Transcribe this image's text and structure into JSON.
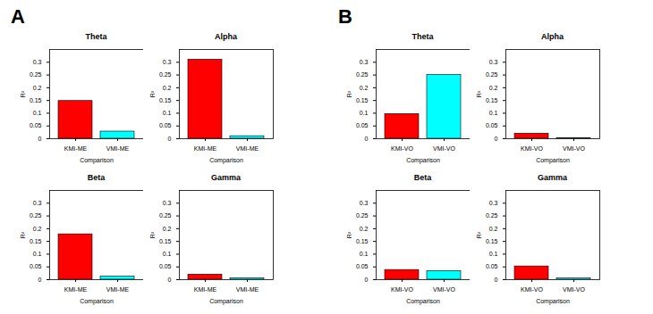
{
  "panel_labels": [
    "A",
    "B"
  ],
  "chart_data": [
    {
      "type": "bar",
      "title": "Theta",
      "categories": [
        "KMI-ME",
        "VMI-ME"
      ],
      "values": [
        0.148,
        0.028
      ],
      "colors": [
        "#ff0000",
        "#00ffff"
      ],
      "xlabel": "Comparison",
      "ylabel": "R²",
      "ylim": [
        0,
        0.35
      ],
      "yticks": [
        0,
        0.05,
        0.1,
        0.15,
        0.2,
        0.25,
        0.3
      ]
    },
    {
      "type": "bar",
      "title": "Alpha",
      "categories": [
        "KMI-ME",
        "VMI-ME"
      ],
      "values": [
        0.31,
        0.01
      ],
      "colors": [
        "#ff0000",
        "#00ffff"
      ],
      "xlabel": "Comparison",
      "ylabel": "R²",
      "ylim": [
        0,
        0.35
      ],
      "yticks": [
        0,
        0.05,
        0.1,
        0.15,
        0.2,
        0.25,
        0.3
      ]
    },
    {
      "type": "bar",
      "title": "Beta",
      "categories": [
        "KMI-ME",
        "VMI-ME"
      ],
      "values": [
        0.178,
        0.012
      ],
      "colors": [
        "#ff0000",
        "#00ffff"
      ],
      "xlabel": "Comparison",
      "ylabel": "R²",
      "ylim": [
        0,
        0.35
      ],
      "yticks": [
        0,
        0.05,
        0.1,
        0.15,
        0.2,
        0.25,
        0.3
      ]
    },
    {
      "type": "bar",
      "title": "Gamma",
      "categories": [
        "KMI-ME",
        "VMI-ME"
      ],
      "values": [
        0.02,
        0.006
      ],
      "colors": [
        "#ff0000",
        "#00ffff"
      ],
      "xlabel": "Comparison",
      "ylabel": "R²",
      "ylim": [
        0,
        0.35
      ],
      "yticks": [
        0,
        0.05,
        0.1,
        0.15,
        0.2,
        0.25,
        0.3
      ]
    },
    {
      "type": "bar",
      "title": "Theta",
      "categories": [
        "KMI-VO",
        "VMI-VO"
      ],
      "values": [
        0.097,
        0.25
      ],
      "colors": [
        "#ff0000",
        "#00ffff"
      ],
      "xlabel": "Comparison",
      "ylabel": "R²",
      "ylim": [
        0,
        0.35
      ],
      "yticks": [
        0,
        0.05,
        0.1,
        0.15,
        0.2,
        0.25,
        0.3
      ]
    },
    {
      "type": "bar",
      "title": "Alpha",
      "categories": [
        "KMI-VO",
        "VMI-VO"
      ],
      "values": [
        0.02,
        0.002
      ],
      "colors": [
        "#ff0000",
        "#00ffff"
      ],
      "xlabel": "Comparison",
      "ylabel": "R²",
      "ylim": [
        0,
        0.35
      ],
      "yticks": [
        0,
        0.05,
        0.1,
        0.15,
        0.2,
        0.25,
        0.3
      ]
    },
    {
      "type": "bar",
      "title": "Beta",
      "categories": [
        "KMI-VO",
        "VMI-VO"
      ],
      "values": [
        0.038,
        0.034
      ],
      "colors": [
        "#ff0000",
        "#00ffff"
      ],
      "xlabel": "Comparison",
      "ylabel": "R²",
      "ylim": [
        0,
        0.35
      ],
      "yticks": [
        0,
        0.05,
        0.1,
        0.15,
        0.2,
        0.25,
        0.3
      ]
    },
    {
      "type": "bar",
      "title": "Gamma",
      "categories": [
        "KMI-VO",
        "VMI-VO"
      ],
      "values": [
        0.052,
        0.005
      ],
      "colors": [
        "#ff0000",
        "#00ffff"
      ],
      "xlabel": "Comparison",
      "ylabel": "R²",
      "ylim": [
        0,
        0.35
      ],
      "yticks": [
        0,
        0.05,
        0.1,
        0.15,
        0.2,
        0.25,
        0.3
      ]
    }
  ]
}
